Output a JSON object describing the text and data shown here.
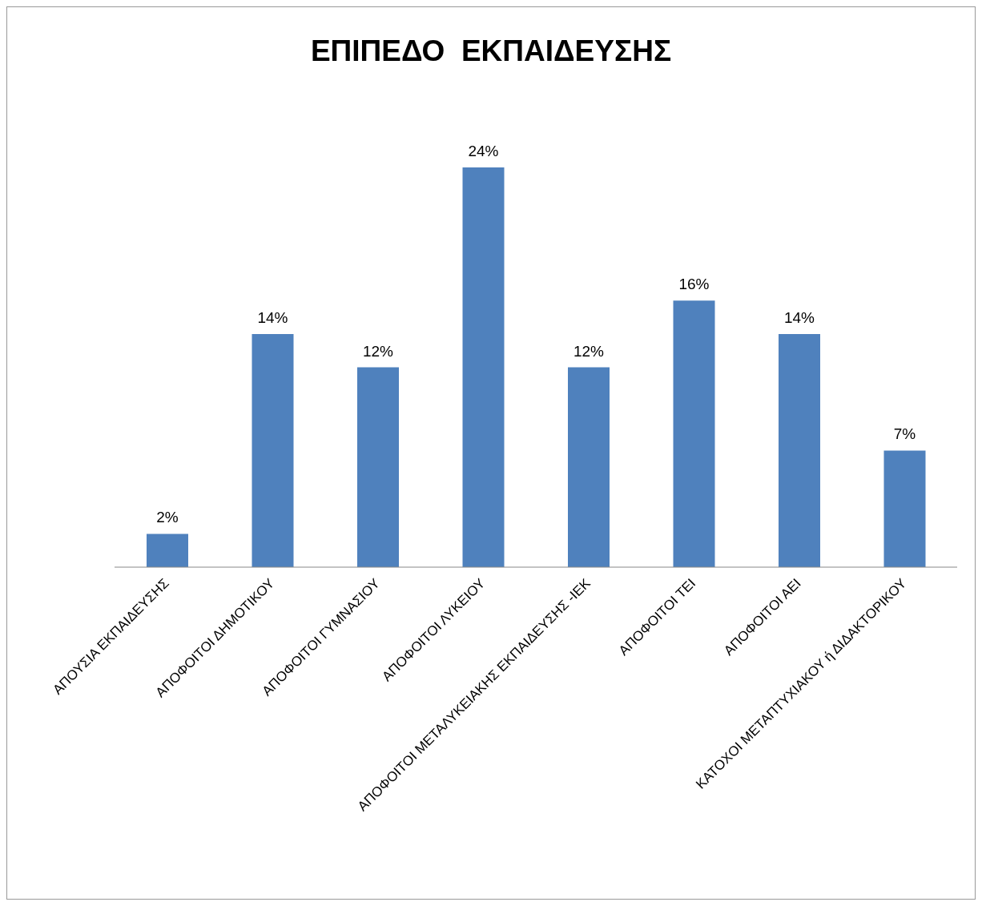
{
  "chart_data": {
    "type": "bar",
    "title": "ΕΠΙΠΕΔΟ  ΕΚΠΑΙΔΕΥΣΗΣ",
    "categories": [
      "ΑΠΟΥΣΙΑ ΕΚΠΑΙΔΕΥΣΗΣ",
      "ΑΠΟΦΟΙΤΟΙ  ΔΗΜΟΤΙΚΟΥ",
      "ΑΠΟΦΟΙΤΟΙ ΓΥΜΝΑΣΙΟΥ",
      "ΑΠΟΦΟΙΤΟΙ ΛΥΚΕΙΟΥ",
      "ΑΠΟΦΟΙΤΟΙ ΜΕΤΑΛΥΚΕΙΑΚΗΣ ΕΚΠΑΙΔΕΥΣΗΣ -ΙΕΚ",
      "ΑΠΟΦΟΙΤΟΙ ΤΕΙ",
      "ΑΠΟΦΟΙΤΟΙ ΑΕΙ",
      "ΚΑΤΟΧΟΙ ΜΕΤΑΠΤΥΧΙΑΚΟΥ ή ΔΙΔΑΚΤΟΡΙΚΟΥ"
    ],
    "values": [
      2,
      14,
      12,
      24,
      12,
      16,
      14,
      7
    ],
    "value_labels": [
      "2%",
      "14%",
      "12%",
      "24%",
      "12%",
      "16%",
      "14%",
      "7%"
    ],
    "color": "#4f81bd",
    "grid": false,
    "legend": false,
    "tick_labels": "x"
  }
}
